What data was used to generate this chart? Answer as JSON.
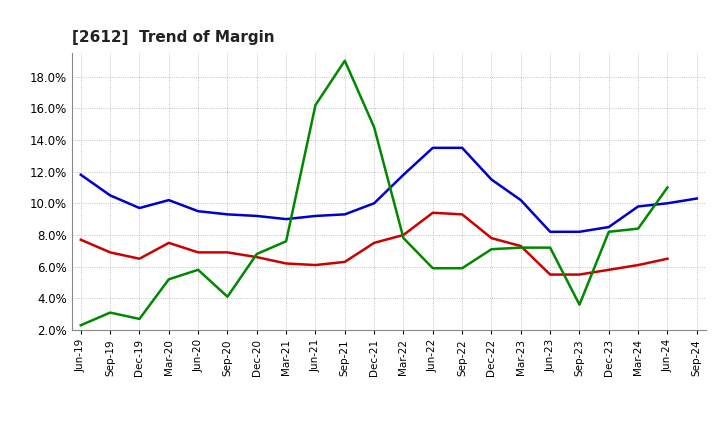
{
  "title": "[2612]  Trend of Margin",
  "x_labels": [
    "Jun-19",
    "Sep-19",
    "Dec-19",
    "Mar-20",
    "Jun-20",
    "Sep-20",
    "Dec-20",
    "Mar-21",
    "Jun-21",
    "Sep-21",
    "Dec-21",
    "Mar-22",
    "Jun-22",
    "Sep-22",
    "Dec-22",
    "Mar-23",
    "Jun-23",
    "Sep-23",
    "Dec-23",
    "Mar-24",
    "Jun-24",
    "Sep-24"
  ],
  "ordinary_income": [
    11.8,
    10.5,
    9.7,
    10.2,
    9.5,
    9.3,
    9.2,
    9.0,
    9.2,
    9.3,
    10.0,
    11.8,
    13.5,
    13.5,
    11.5,
    10.2,
    8.2,
    8.2,
    8.5,
    9.8,
    10.0,
    10.3
  ],
  "net_income": [
    7.7,
    6.9,
    6.5,
    7.5,
    6.9,
    6.9,
    6.6,
    6.2,
    6.1,
    6.3,
    7.5,
    8.0,
    9.4,
    9.3,
    7.8,
    7.3,
    5.5,
    5.5,
    5.8,
    6.1,
    6.5,
    null
  ],
  "operating_cashflow": [
    2.3,
    3.1,
    2.7,
    5.2,
    5.8,
    4.1,
    6.8,
    7.6,
    16.2,
    19.0,
    14.8,
    7.8,
    5.9,
    5.9,
    7.1,
    7.2,
    7.2,
    3.6,
    8.2,
    8.4,
    11.0,
    null
  ],
  "ylim": [
    2.0,
    19.5
  ],
  "yticks": [
    2.0,
    4.0,
    6.0,
    8.0,
    10.0,
    12.0,
    14.0,
    16.0,
    18.0
  ],
  "colors": {
    "ordinary_income": "#0000cc",
    "net_income": "#cc0000",
    "operating_cashflow": "#008800"
  },
  "background_color": "#ffffff",
  "grid_color": "#999999"
}
